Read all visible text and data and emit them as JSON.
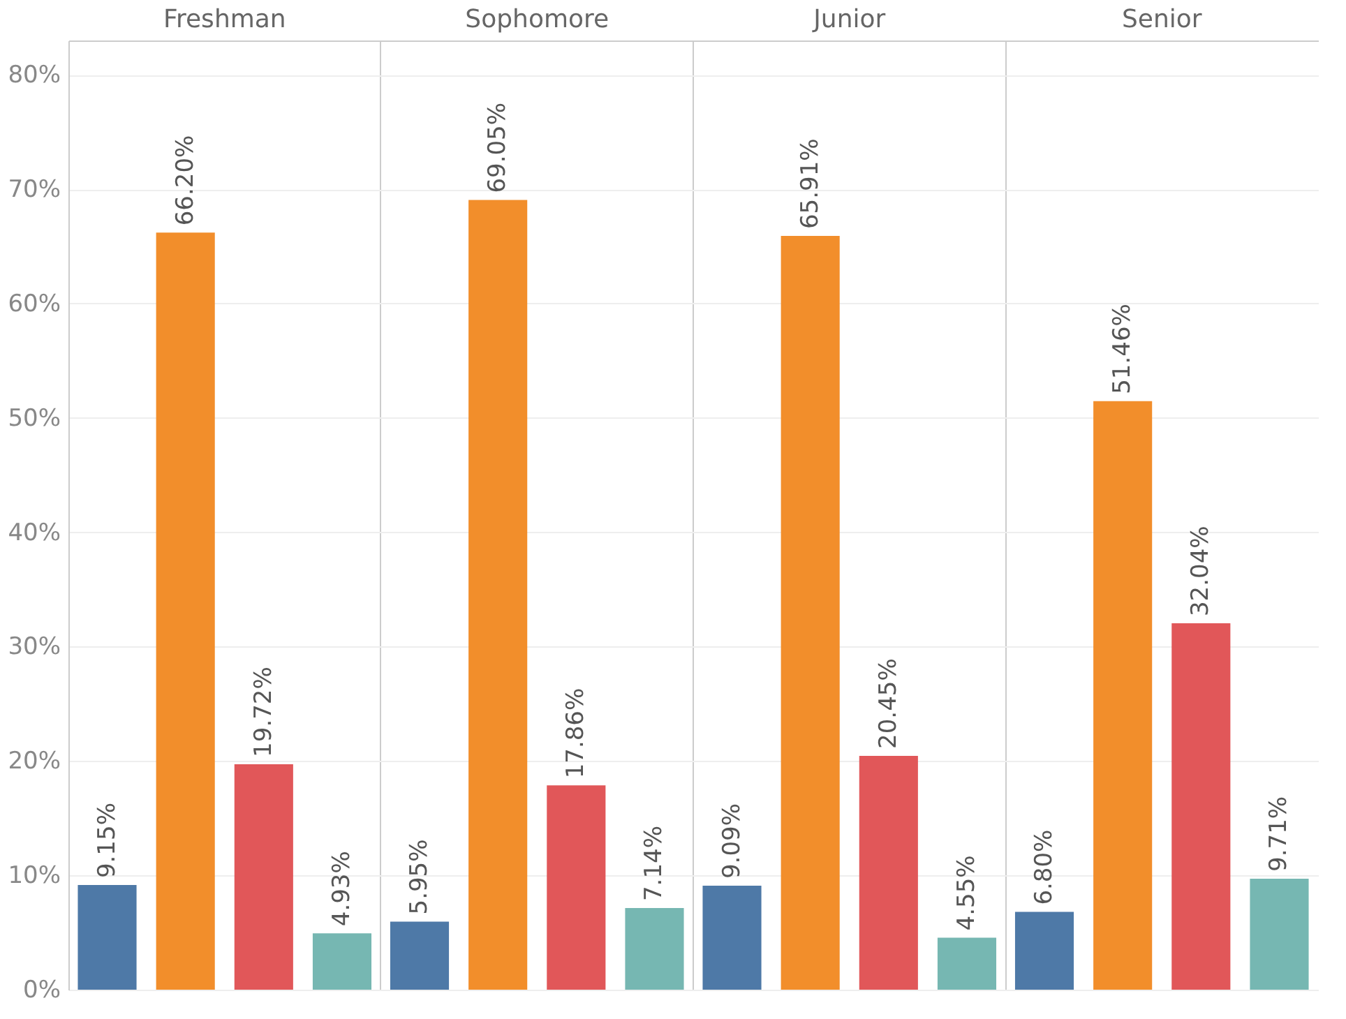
{
  "chart_data": {
    "type": "bar",
    "categories": [
      "Freshman",
      "Sophomore",
      "Junior",
      "Senior"
    ],
    "series": [
      {
        "color": "#4e79a7",
        "values": [
          9.15,
          5.95,
          9.09,
          6.8
        ],
        "value_labels": [
          "9.15%",
          "5.95%",
          "9.09%",
          "6.80%"
        ]
      },
      {
        "color": "#f28e2b",
        "values": [
          66.2,
          69.05,
          65.91,
          51.46
        ],
        "value_labels": [
          "66.20%",
          "69.05%",
          "65.91%",
          "51.46%"
        ]
      },
      {
        "color": "#e15759",
        "values": [
          19.72,
          17.86,
          20.45,
          32.04
        ],
        "value_labels": [
          "19.72%",
          "17.86%",
          "20.45%",
          "32.04%"
        ]
      },
      {
        "color": "#76b7b2",
        "values": [
          4.93,
          7.14,
          4.55,
          9.71
        ],
        "value_labels": [
          "4.93%",
          "7.14%",
          "4.55%",
          "9.71%"
        ]
      }
    ],
    "ylim": [
      0,
      83
    ],
    "yticks": [
      {
        "value": 0,
        "label": "0%"
      },
      {
        "value": 10,
        "label": "10%"
      },
      {
        "value": 20,
        "label": "20%"
      },
      {
        "value": 30,
        "label": "30%"
      },
      {
        "value": 40,
        "label": "40%"
      },
      {
        "value": 50,
        "label": "50%"
      },
      {
        "value": 60,
        "label": "60%"
      },
      {
        "value": 70,
        "label": "70%"
      },
      {
        "value": 80,
        "label": "80%"
      }
    ],
    "grid": "y",
    "legend": false
  }
}
